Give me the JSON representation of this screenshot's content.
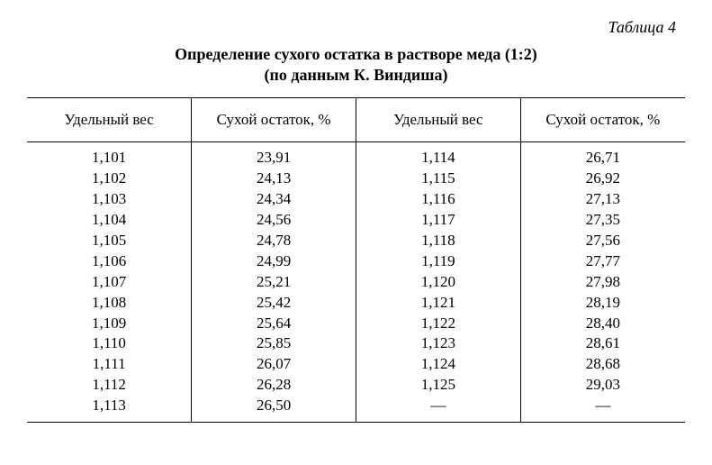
{
  "tableLabel": "Таблица 4",
  "titleLine1": "Определение сухого остатка в растворе меда (1:2)",
  "titleLine2": "(по данным К. Виндиша)",
  "headers": {
    "specificWeight": "Удельный вес",
    "dryResidue": "Сухой остаток, %"
  },
  "data_table": {
    "type": "table",
    "columns": [
      "Удельный вес",
      "Сухой остаток, %",
      "Удельный вес",
      "Сухой остаток, %"
    ],
    "rows": [
      [
        "1,101",
        "23,91",
        "1,114",
        "26,71"
      ],
      [
        "1,102",
        "24,13",
        "1,115",
        "26,92"
      ],
      [
        "1,103",
        "24,34",
        "1,116",
        "27,13"
      ],
      [
        "1,104",
        "24,56",
        "1,117",
        "27,35"
      ],
      [
        "1,105",
        "24,78",
        "1,118",
        "27,56"
      ],
      [
        "1,106",
        "24,99",
        "1,119",
        "27,77"
      ],
      [
        "1,107",
        "25,21",
        "1,120",
        "27,98"
      ],
      [
        "1,108",
        "25,42",
        "1,121",
        "28,19"
      ],
      [
        "1,109",
        "25,64",
        "1,122",
        "28,40"
      ],
      [
        "1,110",
        "25,85",
        "1,123",
        "28,61"
      ],
      [
        "1,111",
        "26,07",
        "1,124",
        "28,68"
      ],
      [
        "1,112",
        "26,28",
        "1,125",
        "29,03"
      ],
      [
        "1,113",
        "26,50",
        "—",
        "—"
      ]
    ],
    "border_color": "#000000",
    "background_color": "#ffffff",
    "font_family": "Times New Roman",
    "body_fontsize": 17,
    "header_fontsize": 17,
    "title_fontsize": 18,
    "column_align": [
      "center",
      "center",
      "center",
      "center"
    ]
  }
}
